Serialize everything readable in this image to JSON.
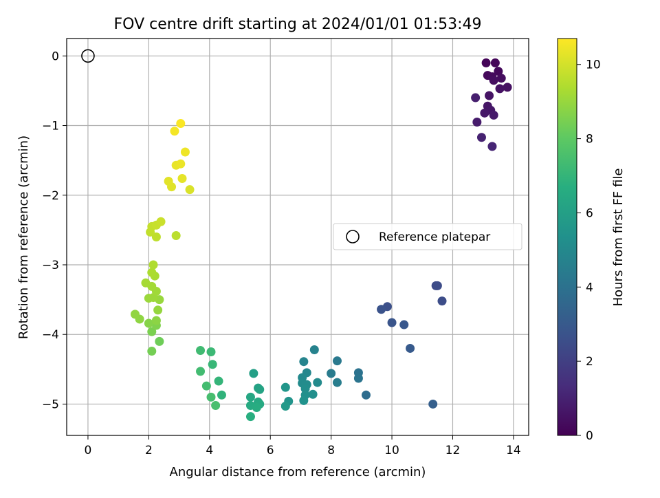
{
  "chart_data": {
    "type": "scatter",
    "title": "FOV centre drift starting at 2024/01/01 01:53:49",
    "xlabel": "Angular distance from reference (arcmin)",
    "ylabel": "Rotation from reference (arcmin)",
    "xlim": [
      -0.7,
      14.5
    ],
    "ylim": [
      -5.45,
      0.25
    ],
    "xticks": [
      "0",
      "2",
      "4",
      "6",
      "8",
      "10",
      "12",
      "14"
    ],
    "yticks": [
      "0",
      "−1",
      "−2",
      "−3",
      "−4",
      "−5"
    ],
    "grid": true,
    "legend": {
      "placement": "center-right",
      "entries": [
        "Reference platepar"
      ]
    },
    "colorbar": {
      "label": "Hours from first FF file",
      "range": [
        0,
        10.7
      ],
      "ticks": [
        "0",
        "2",
        "4",
        "6",
        "8",
        "10"
      ],
      "colormap": "viridis"
    },
    "reference_point": {
      "x": 0,
      "y": 0,
      "label": "Reference platepar"
    },
    "points": [
      {
        "x": 13.1,
        "y": -0.1,
        "h": 0.1
      },
      {
        "x": 13.4,
        "y": -0.1,
        "h": 0.15
      },
      {
        "x": 13.5,
        "y": -0.22,
        "h": 0.2
      },
      {
        "x": 13.15,
        "y": -0.28,
        "h": 0.25
      },
      {
        "x": 13.3,
        "y": -0.3,
        "h": 0.3
      },
      {
        "x": 13.6,
        "y": -0.32,
        "h": 0.35
      },
      {
        "x": 13.35,
        "y": -0.35,
        "h": 0.4
      },
      {
        "x": 13.8,
        "y": -0.45,
        "h": 0.45
      },
      {
        "x": 13.55,
        "y": -0.47,
        "h": 0.5
      },
      {
        "x": 13.2,
        "y": -0.57,
        "h": 0.55
      },
      {
        "x": 13.15,
        "y": -0.72,
        "h": 0.6
      },
      {
        "x": 13.25,
        "y": -0.78,
        "h": 0.65
      },
      {
        "x": 13.05,
        "y": -0.82,
        "h": 0.7
      },
      {
        "x": 13.35,
        "y": -0.85,
        "h": 0.75
      },
      {
        "x": 12.8,
        "y": -0.95,
        "h": 0.8
      },
      {
        "x": 12.75,
        "y": -0.6,
        "h": 0.9
      },
      {
        "x": 12.95,
        "y": -1.17,
        "h": 1.0
      },
      {
        "x": 13.3,
        "y": -1.3,
        "h": 1.1
      },
      {
        "x": 11.45,
        "y": -3.3,
        "h": 2.4
      },
      {
        "x": 11.5,
        "y": -3.3,
        "h": 2.45
      },
      {
        "x": 11.65,
        "y": -3.52,
        "h": 2.5
      },
      {
        "x": 9.85,
        "y": -3.6,
        "h": 2.6
      },
      {
        "x": 9.65,
        "y": -3.64,
        "h": 2.7
      },
      {
        "x": 10.0,
        "y": -3.83,
        "h": 2.8
      },
      {
        "x": 10.4,
        "y": -3.86,
        "h": 2.9
      },
      {
        "x": 10.6,
        "y": -4.2,
        "h": 3.0
      },
      {
        "x": 11.35,
        "y": -5.0,
        "h": 3.2
      },
      {
        "x": 9.15,
        "y": -4.87,
        "h": 3.8
      },
      {
        "x": 8.9,
        "y": -4.55,
        "h": 4.0
      },
      {
        "x": 8.9,
        "y": -4.63,
        "h": 4.1
      },
      {
        "x": 8.2,
        "y": -4.38,
        "h": 4.3
      },
      {
        "x": 8.0,
        "y": -4.56,
        "h": 4.4
      },
      {
        "x": 8.2,
        "y": -4.69,
        "h": 4.5
      },
      {
        "x": 7.45,
        "y": -4.22,
        "h": 4.7
      },
      {
        "x": 7.1,
        "y": -4.39,
        "h": 4.8
      },
      {
        "x": 7.2,
        "y": -4.55,
        "h": 4.9
      },
      {
        "x": 7.05,
        "y": -4.62,
        "h": 5.0
      },
      {
        "x": 7.55,
        "y": -4.69,
        "h": 5.05
      },
      {
        "x": 7.05,
        "y": -4.7,
        "h": 5.1
      },
      {
        "x": 7.2,
        "y": -4.72,
        "h": 5.15
      },
      {
        "x": 7.15,
        "y": -4.78,
        "h": 5.2
      },
      {
        "x": 7.4,
        "y": -4.86,
        "h": 5.25
      },
      {
        "x": 7.15,
        "y": -4.87,
        "h": 5.3
      },
      {
        "x": 7.1,
        "y": -4.95,
        "h": 5.4
      },
      {
        "x": 6.6,
        "y": -4.96,
        "h": 5.5
      },
      {
        "x": 6.5,
        "y": -4.76,
        "h": 5.6
      },
      {
        "x": 6.5,
        "y": -5.03,
        "h": 5.7
      },
      {
        "x": 5.45,
        "y": -4.56,
        "h": 6.0
      },
      {
        "x": 5.6,
        "y": -4.77,
        "h": 6.1
      },
      {
        "x": 5.65,
        "y": -4.79,
        "h": 6.2
      },
      {
        "x": 5.35,
        "y": -4.9,
        "h": 6.3
      },
      {
        "x": 5.6,
        "y": -4.97,
        "h": 6.4
      },
      {
        "x": 5.65,
        "y": -5.0,
        "h": 6.45
      },
      {
        "x": 5.35,
        "y": -5.02,
        "h": 6.5
      },
      {
        "x": 5.55,
        "y": -5.05,
        "h": 6.6
      },
      {
        "x": 5.35,
        "y": -5.18,
        "h": 6.7
      },
      {
        "x": 4.4,
        "y": -4.87,
        "h": 6.9
      },
      {
        "x": 4.3,
        "y": -4.67,
        "h": 7.0
      },
      {
        "x": 4.1,
        "y": -4.43,
        "h": 7.1
      },
      {
        "x": 4.05,
        "y": -4.25,
        "h": 7.2
      },
      {
        "x": 3.7,
        "y": -4.23,
        "h": 7.3
      },
      {
        "x": 3.7,
        "y": -4.53,
        "h": 7.35
      },
      {
        "x": 3.9,
        "y": -4.74,
        "h": 7.4
      },
      {
        "x": 4.05,
        "y": -4.9,
        "h": 7.45
      },
      {
        "x": 4.2,
        "y": -5.02,
        "h": 7.5
      },
      {
        "x": 2.35,
        "y": -4.1,
        "h": 8.3
      },
      {
        "x": 2.1,
        "y": -4.24,
        "h": 8.4
      },
      {
        "x": 2.1,
        "y": -3.96,
        "h": 8.5
      },
      {
        "x": 2.25,
        "y": -3.87,
        "h": 8.6
      },
      {
        "x": 2.0,
        "y": -3.84,
        "h": 8.7
      },
      {
        "x": 2.25,
        "y": -3.8,
        "h": 8.8
      },
      {
        "x": 1.7,
        "y": -3.78,
        "h": 8.85
      },
      {
        "x": 1.55,
        "y": -3.71,
        "h": 8.9
      },
      {
        "x": 2.3,
        "y": -3.65,
        "h": 8.95
      },
      {
        "x": 2.35,
        "y": -3.5,
        "h": 9.0
      },
      {
        "x": 2.0,
        "y": -3.48,
        "h": 9.05
      },
      {
        "x": 2.15,
        "y": -3.47,
        "h": 9.1
      },
      {
        "x": 2.25,
        "y": -3.38,
        "h": 9.15
      },
      {
        "x": 2.1,
        "y": -3.31,
        "h": 9.2
      },
      {
        "x": 1.9,
        "y": -3.26,
        "h": 9.25
      },
      {
        "x": 2.2,
        "y": -3.16,
        "h": 9.3
      },
      {
        "x": 2.1,
        "y": -3.11,
        "h": 9.35
      },
      {
        "x": 2.15,
        "y": -3.0,
        "h": 9.4
      },
      {
        "x": 2.9,
        "y": -2.58,
        "h": 9.6
      },
      {
        "x": 2.25,
        "y": -2.6,
        "h": 9.65
      },
      {
        "x": 2.05,
        "y": -2.53,
        "h": 9.7
      },
      {
        "x": 2.1,
        "y": -2.45,
        "h": 9.75
      },
      {
        "x": 2.25,
        "y": -2.43,
        "h": 9.8
      },
      {
        "x": 2.4,
        "y": -2.38,
        "h": 9.85
      },
      {
        "x": 3.35,
        "y": -1.92,
        "h": 10.1
      },
      {
        "x": 2.75,
        "y": -1.88,
        "h": 10.2
      },
      {
        "x": 2.65,
        "y": -1.8,
        "h": 10.25
      },
      {
        "x": 3.1,
        "y": -1.76,
        "h": 10.3
      },
      {
        "x": 2.9,
        "y": -1.57,
        "h": 10.35
      },
      {
        "x": 3.05,
        "y": -1.55,
        "h": 10.4
      },
      {
        "x": 3.2,
        "y": -1.38,
        "h": 10.45
      },
      {
        "x": 2.85,
        "y": -1.08,
        "h": 10.55
      },
      {
        "x": 3.05,
        "y": -0.97,
        "h": 10.65
      }
    ]
  }
}
